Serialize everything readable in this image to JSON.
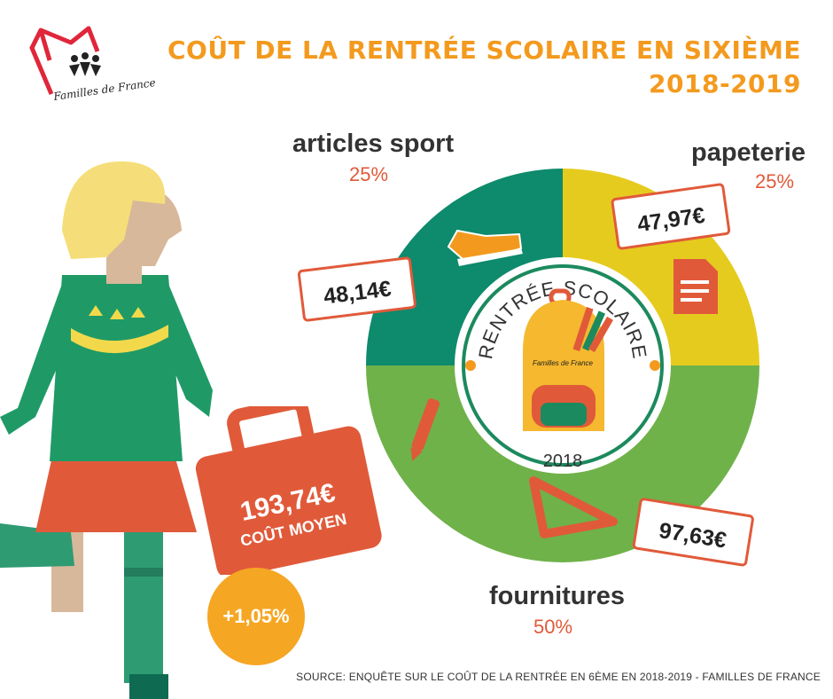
{
  "logo": {
    "text": "Familles de France"
  },
  "header": {
    "title": "COÛT DE LA RENTRÉE SCOLAIRE EN SIXIÈME",
    "subtitle": "2018-2019"
  },
  "badge": {
    "line1": "RENTRÉE SCOLAIRE",
    "year": "2018",
    "bag_logo": "Familles de France"
  },
  "total": {
    "amount": "193,74€",
    "label": "COÛT MOYEN",
    "change": "+1,05%"
  },
  "source": "SOURCE: ENQUÊTE SUR LE COÛT DE LA RENTRÉE EN 6ÈME EN 2018-2019 - FAMILLES DE FRANCE",
  "colors": {
    "sport": "#0e8a6c",
    "papeterie": "#e6cb1f",
    "fournitures": "#6fb24a",
    "accent": "#f39a1e",
    "red": "#e05a3a"
  },
  "chart_data": {
    "type": "pie",
    "title": "COÛT DE LA RENTRÉE SCOLAIRE EN SIXIÈME",
    "subtitle": "2018-2019",
    "slices": [
      {
        "label": "papeterie",
        "percent": 25,
        "percent_label": "25%",
        "amount": "47,97€",
        "color": "#e6cb1f"
      },
      {
        "label": "fournitures",
        "percent": 50,
        "percent_label": "50%",
        "amount": "97,63€",
        "color": "#6fb24a"
      },
      {
        "label": "articles sport",
        "percent": 25,
        "percent_label": "25%",
        "amount": "48,14€",
        "color": "#0e8a6c"
      }
    ]
  }
}
